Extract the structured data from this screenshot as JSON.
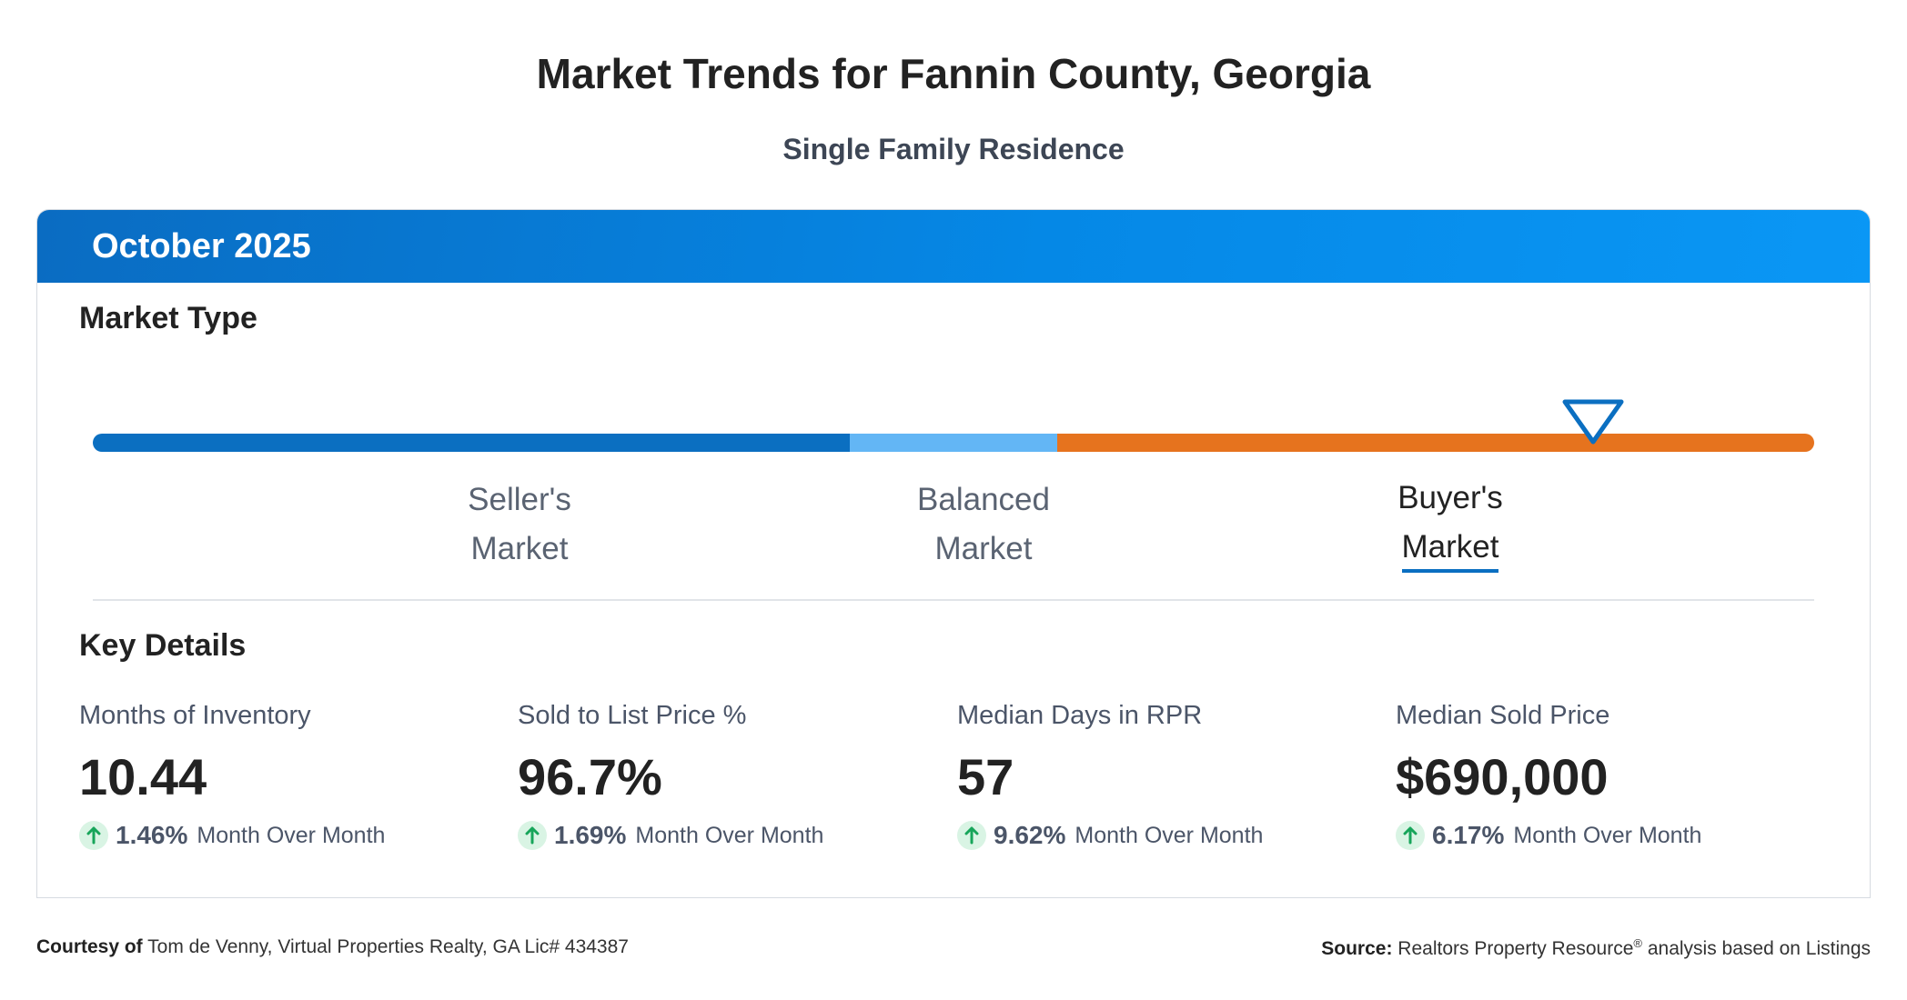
{
  "page": {
    "title": "Market Trends for Fannin County, Georgia",
    "subtitle": "Single Family Residence"
  },
  "card": {
    "period": "October 2025",
    "market_type_title": "Market Type",
    "market_types": [
      {
        "line1": "Seller's",
        "line2": "Market",
        "active": false
      },
      {
        "line1": "Balanced",
        "line2": "Market",
        "active": false
      },
      {
        "line1": "Buyer's",
        "line2": "Market",
        "active": true
      }
    ],
    "key_details_title": "Key Details",
    "key_details": [
      {
        "label": "Months of Inventory",
        "value": "10.44",
        "change": "1.46%",
        "change_label": "Month Over Month"
      },
      {
        "label": "Sold to List Price %",
        "value": "96.7%",
        "change": "1.69%",
        "change_label": "Month Over Month"
      },
      {
        "label": "Median Days in RPR",
        "value": "57",
        "change": "9.62%",
        "change_label": "Month Over Month"
      },
      {
        "label": "Median Sold Price",
        "value": "$690,000",
        "change": "6.17%",
        "change_label": "Month Over Month"
      }
    ]
  },
  "footer": {
    "courtesy_label": "Courtesy of",
    "courtesy_text": "Tom de Venny, Virtual Properties Realty, GA Lic# 434387",
    "source_label": "Source:",
    "source_text_a": "Realtors Property Resource",
    "source_reg": "®",
    "source_text_b": "analysis based on Listings"
  },
  "colors": {
    "header_blue": "#0588e6",
    "seller": "#0b6fc1",
    "balanced": "#63b6f5",
    "buyer": "#e6731e",
    "up_arrow": "#17a55a"
  },
  "icons": {
    "marker": "triangle-down-marker-icon",
    "change": "arrow-up-icon"
  }
}
